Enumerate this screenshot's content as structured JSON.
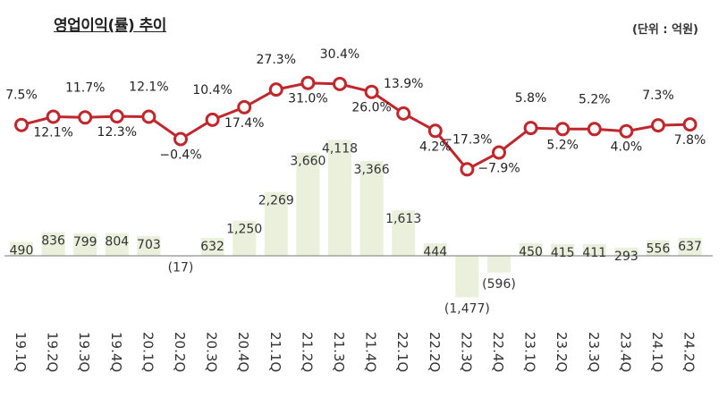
{
  "title": "영업이익(률) 추이",
  "unit": "(단위 : 억원)",
  "chart_data": {
    "type": "bar",
    "categories": [
      "19.1Q",
      "19.2Q",
      "19.3Q",
      "19.4Q",
      "20.1Q",
      "20.2Q",
      "20.3Q",
      "20.4Q",
      "21.1Q",
      "21.2Q",
      "21.3Q",
      "21.4Q",
      "22.1Q",
      "22.2Q",
      "22.3Q",
      "22.4Q",
      "23.1Q",
      "23.2Q",
      "23.3Q",
      "23.4Q",
      "24.1Q",
      "24.2Q"
    ],
    "series": [
      {
        "type": "bar",
        "values": [
          490,
          836,
          799,
          804,
          703,
          -17,
          632,
          1250,
          2269,
          3660,
          4118,
          3366,
          1613,
          444,
          -1477,
          -596,
          450,
          415,
          411,
          293,
          556,
          637
        ],
        "labels": [
          "490",
          "836",
          "799",
          "804",
          "703",
          "(17)",
          "632",
          "1,250",
          "2,269",
          "3,660",
          "4,118",
          "3,366",
          "1,613",
          "444",
          "(1,477)",
          "(596)",
          "450",
          "415",
          "411",
          "293",
          "556",
          "637"
        ]
      },
      {
        "type": "line",
        "values": [
          7.5,
          12.1,
          11.7,
          12.3,
          12.1,
          -0.4,
          10.4,
          17.4,
          27.3,
          31.0,
          30.4,
          26.0,
          13.9,
          4.2,
          -17.3,
          -7.9,
          5.8,
          5.2,
          5.2,
          4.0,
          7.3,
          7.8
        ],
        "labels": [
          "7.5%",
          "12.1%",
          "11.7%",
          "12.3%",
          "12.1%",
          "−0.4%",
          "10.4%",
          "17.4%",
          "27.3%",
          "31.0%",
          "30.4%",
          "26.0%",
          "13.9%",
          "4.2%",
          "−17.3%",
          "−7.9%",
          "5.8%",
          "5.2%",
          "5.2%",
          "4.0%",
          "7.3%",
          "7.8%"
        ]
      }
    ],
    "colors": {
      "bar": "#eaf0dc",
      "line": "#c0272d"
    }
  }
}
